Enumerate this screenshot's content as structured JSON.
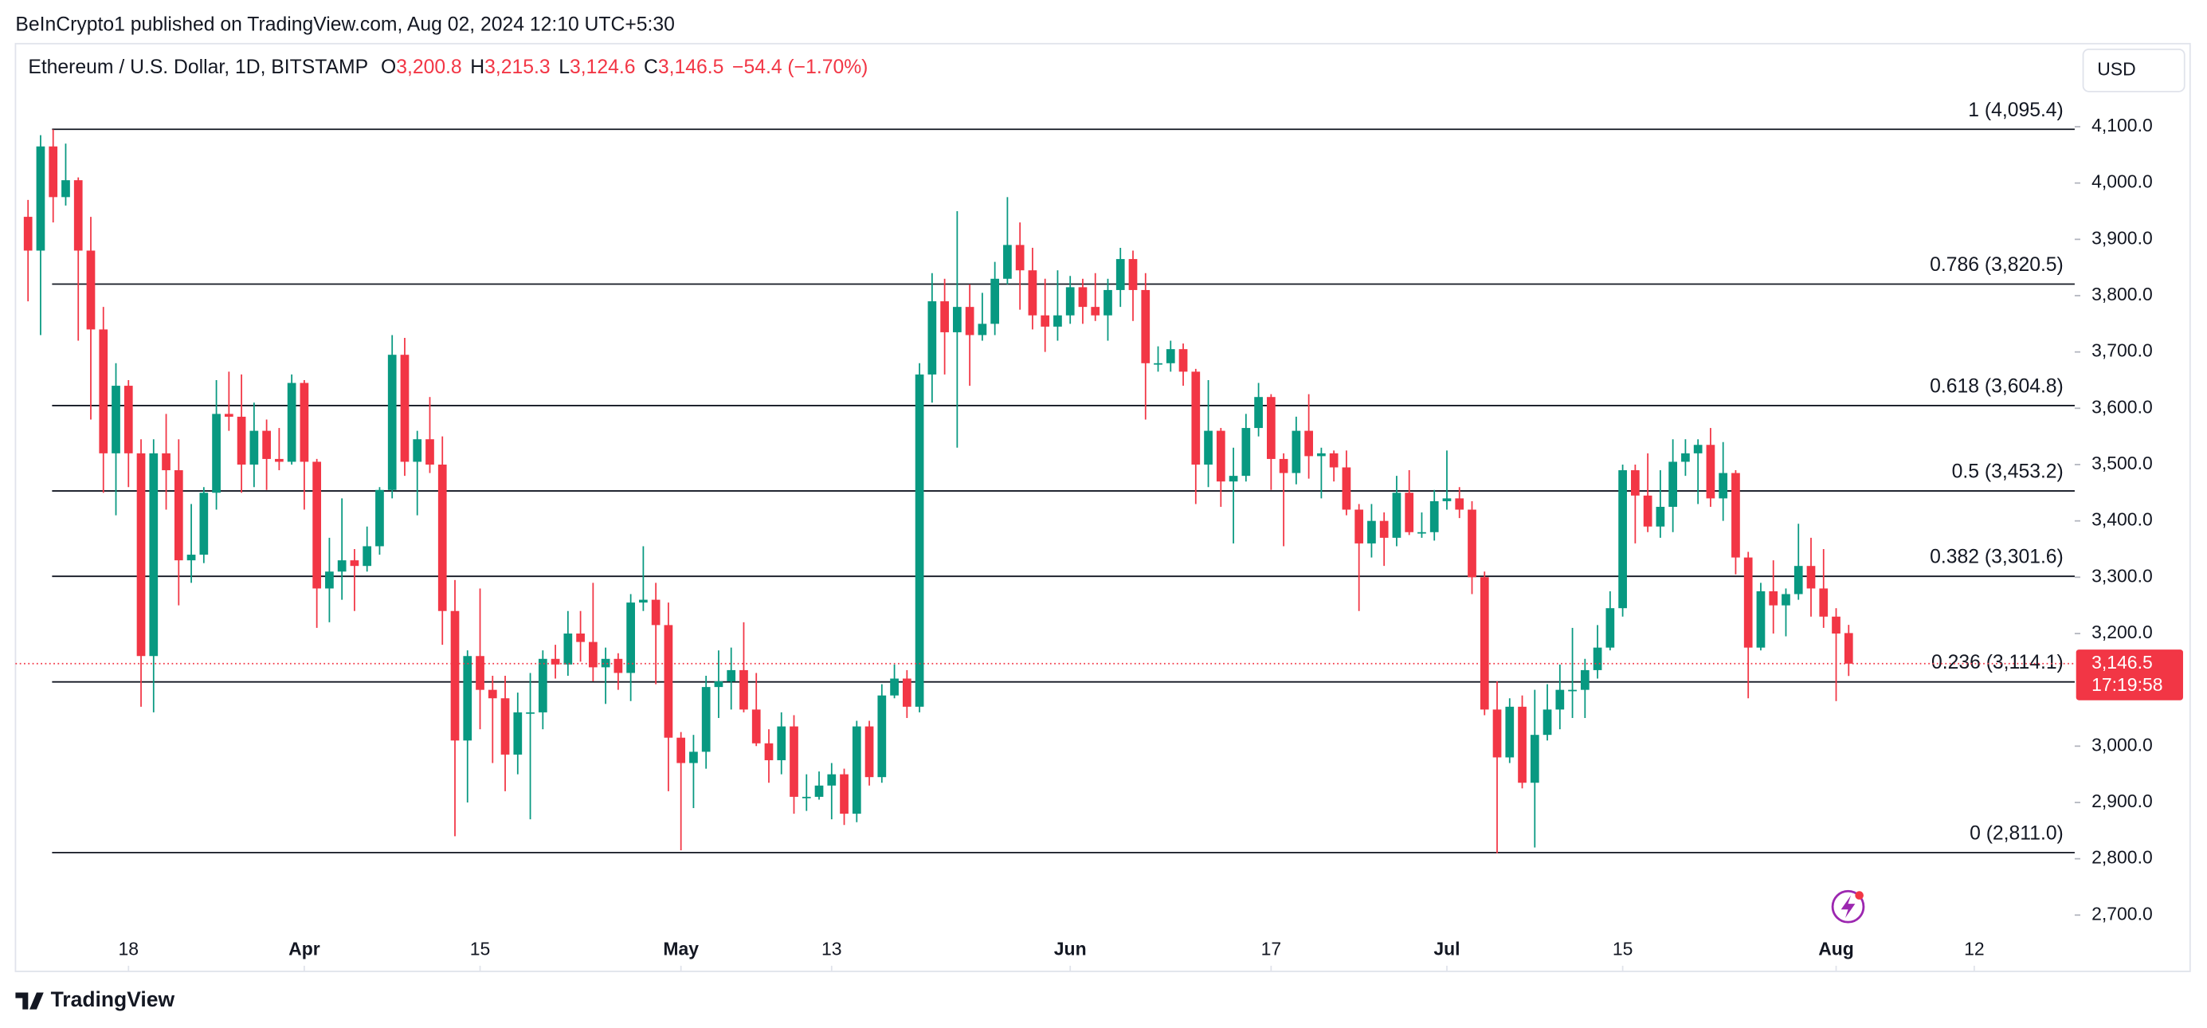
{
  "header": {
    "published": "BeInCrypto1 published on TradingView.com, Aug 02, 2024 12:10 UTC+5:30",
    "currency": "USD",
    "brand": "TradingView"
  },
  "chart_data": {
    "type": "candlestick",
    "legend": {
      "symbol": "Ethereum / U.S. Dollar, 1D, BITSTAMP",
      "ohlc": [
        {
          "key": "O",
          "value": "3,200.8"
        },
        {
          "key": "H",
          "value": "3,215.3"
        },
        {
          "key": "L",
          "value": "3,124.6"
        },
        {
          "key": "C",
          "value": "3,146.5"
        }
      ],
      "change": "−54.4 (−1.70%)"
    },
    "up_color": "#089981",
    "down_color": "#f23645",
    "open": [
      3940,
      3880,
      4065,
      3975,
      4005,
      3880,
      3740,
      3520,
      3640,
      3520,
      3160,
      3520,
      3490,
      3330,
      3340,
      3450,
      3590,
      3585,
      3500,
      3560,
      3510,
      3505,
      3645,
      3505,
      3280,
      3310,
      3330,
      3320,
      3355,
      3455,
      3695,
      3505,
      3545,
      3500,
      3240,
      3010,
      3160,
      3100,
      3085,
      2985,
      3060,
      3060,
      3155,
      3145,
      3200,
      3185,
      3140,
      3155,
      3130,
      3255,
      3260,
      3215,
      3015,
      2970,
      2990,
      3105,
      3115,
      3135,
      3065,
      3005,
      2975,
      3035,
      2910,
      2910,
      2930,
      2950,
      2880,
      3035,
      2945,
      3090,
      3120,
      3070,
      3660,
      3790,
      3735,
      3780,
      3730,
      3750,
      3830,
      3890,
      3845,
      3765,
      3745,
      3765,
      3815,
      3780,
      3765,
      3810,
      3865,
      3810,
      3680,
      3680,
      3705,
      3665,
      3500,
      3560,
      3470,
      3480,
      3565,
      3620,
      3510,
      3485,
      3560,
      3515,
      3520,
      3495,
      3420,
      3360,
      3400,
      3370,
      3450,
      3380,
      3380,
      3435,
      3440,
      3420,
      3300,
      3065,
      2980,
      3070,
      2935,
      3020,
      3065,
      3100,
      3100,
      3135,
      3175,
      3245,
      3490,
      3445,
      3390,
      3425,
      3505,
      3520,
      3535,
      3440,
      3485,
      3335,
      3175,
      3275,
      3250,
      3270,
      3320,
      3280,
      3230,
      3200.8
    ],
    "high": [
      3970,
      4085,
      4095,
      4070,
      4010,
      3940,
      3780,
      3680,
      3650,
      3545,
      3545,
      3590,
      3545,
      3430,
      3460,
      3650,
      3665,
      3660,
      3610,
      3580,
      3565,
      3660,
      3650,
      3510,
      3370,
      3440,
      3350,
      3390,
      3460,
      3730,
      3725,
      3560,
      3620,
      3550,
      3295,
      3170,
      3280,
      3125,
      3125,
      3095,
      3130,
      3170,
      3180,
      3240,
      3240,
      3290,
      3175,
      3165,
      3270,
      3355,
      3290,
      3255,
      3025,
      3020,
      3125,
      3170,
      3175,
      3220,
      3130,
      3030,
      3060,
      3055,
      2950,
      2955,
      2970,
      2960,
      3045,
      3045,
      3110,
      3145,
      3135,
      3680,
      3840,
      3830,
      3950,
      3820,
      3805,
      3860,
      3975,
      3930,
      3885,
      3830,
      3845,
      3835,
      3830,
      3840,
      3830,
      3885,
      3880,
      3840,
      3710,
      3720,
      3715,
      3670,
      3650,
      3565,
      3530,
      3590,
      3645,
      3625,
      3520,
      3585,
      3625,
      3530,
      3525,
      3525,
      3430,
      3430,
      3415,
      3480,
      3490,
      3415,
      3455,
      3525,
      3460,
      3435,
      3310,
      3115,
      3085,
      3090,
      3100,
      3110,
      3145,
      3210,
      3155,
      3215,
      3275,
      3500,
      3500,
      3520,
      3490,
      3545,
      3545,
      3545,
      3565,
      3540,
      3490,
      3345,
      3290,
      3330,
      3280,
      3395,
      3370,
      3350,
      3245,
      3215.3
    ],
    "low": [
      3790,
      3730,
      3930,
      3960,
      3720,
      3580,
      3450,
      3410,
      3460,
      3070,
      3060,
      3420,
      3250,
      3290,
      3325,
      3420,
      3560,
      3450,
      3460,
      3455,
      3490,
      3500,
      3420,
      3210,
      3220,
      3260,
      3240,
      3310,
      3340,
      3440,
      3480,
      3410,
      3485,
      3180,
      2840,
      2900,
      3030,
      2970,
      2920,
      2950,
      2870,
      3030,
      3120,
      3125,
      3150,
      3115,
      3075,
      3100,
      3080,
      3240,
      3110,
      2920,
      2815,
      2890,
      2960,
      3050,
      3065,
      3060,
      3000,
      2935,
      2950,
      2880,
      2885,
      2905,
      2870,
      2860,
      2865,
      2930,
      2935,
      3085,
      3050,
      3060,
      3610,
      3660,
      3530,
      3640,
      3720,
      3730,
      3820,
      3775,
      3740,
      3700,
      3720,
      3750,
      3750,
      3755,
      3720,
      3780,
      3755,
      3580,
      3665,
      3665,
      3640,
      3430,
      3460,
      3425,
      3360,
      3470,
      3550,
      3455,
      3355,
      3465,
      3475,
      3440,
      3470,
      3410,
      3240,
      3335,
      3320,
      3355,
      3375,
      3370,
      3365,
      3420,
      3405,
      3270,
      3055,
      2810,
      2970,
      2925,
      2820,
      3010,
      3030,
      3050,
      3050,
      3120,
      3170,
      3230,
      3360,
      3380,
      3370,
      3380,
      3480,
      3430,
      3425,
      3400,
      3305,
      3085,
      3170,
      3200,
      3195,
      3260,
      3230,
      3210,
      3080,
      3124.6
    ],
    "close": [
      3880,
      4065,
      3975,
      4005,
      3880,
      3740,
      3520,
      3640,
      3520,
      3160,
      3520,
      3490,
      3330,
      3340,
      3450,
      3590,
      3585,
      3500,
      3560,
      3510,
      3505,
      3645,
      3505,
      3280,
      3310,
      3330,
      3320,
      3355,
      3455,
      3695,
      3505,
      3545,
      3500,
      3240,
      3010,
      3160,
      3100,
      3085,
      2985,
      3060,
      3060,
      3155,
      3145,
      3200,
      3185,
      3140,
      3155,
      3130,
      3255,
      3260,
      3215,
      3015,
      2970,
      2990,
      3105,
      3115,
      3135,
      3065,
      3005,
      2975,
      3035,
      2910,
      2910,
      2930,
      2950,
      2880,
      3035,
      2945,
      3090,
      3120,
      3070,
      3660,
      3790,
      3735,
      3780,
      3730,
      3750,
      3830,
      3890,
      3845,
      3765,
      3745,
      3765,
      3815,
      3780,
      3765,
      3810,
      3865,
      3810,
      3680,
      3680,
      3705,
      3665,
      3500,
      3560,
      3470,
      3480,
      3565,
      3620,
      3510,
      3485,
      3560,
      3515,
      3520,
      3495,
      3420,
      3360,
      3400,
      3370,
      3450,
      3380,
      3380,
      3435,
      3440,
      3420,
      3300,
      3065,
      2980,
      3070,
      2935,
      3020,
      3065,
      3100,
      3100,
      3135,
      3175,
      3245,
      3490,
      3445,
      3390,
      3425,
      3505,
      3520,
      3535,
      3440,
      3485,
      3335,
      3175,
      3275,
      3250,
      3270,
      3320,
      3280,
      3230,
      3200,
      3146.5
    ],
    "xlim": [
      -1,
      163
    ],
    "xticks": [
      {
        "value": 8,
        "label": "18"
      },
      {
        "value": 22,
        "label": "Apr"
      },
      {
        "value": 36,
        "label": "15"
      },
      {
        "value": 52,
        "label": "May"
      },
      {
        "value": 64,
        "label": "13"
      },
      {
        "value": 83,
        "label": "Jun"
      },
      {
        "value": 99,
        "label": "17"
      },
      {
        "value": 113,
        "label": "Jul"
      },
      {
        "value": 127,
        "label": "15"
      },
      {
        "value": 144,
        "label": "Aug"
      },
      {
        "value": 155,
        "label": "12"
      }
    ],
    "ylim": [
      2600,
      4247.5
    ],
    "yticks": [
      {
        "value": 4100,
        "label": "4,100.0"
      },
      {
        "value": 4000,
        "label": "4,000.0"
      },
      {
        "value": 3900,
        "label": "3,900.0"
      },
      {
        "value": 3800,
        "label": "3,800.0"
      },
      {
        "value": 3700,
        "label": "3,700.0"
      },
      {
        "value": 3600,
        "label": "3,600.0"
      },
      {
        "value": 3500,
        "label": "3,500.0"
      },
      {
        "value": 3400,
        "label": "3,400.0"
      },
      {
        "value": 3300,
        "label": "3,300.0"
      },
      {
        "value": 3200,
        "label": "3,200.0"
      },
      {
        "value": 3000,
        "label": "3,000.0"
      },
      {
        "value": 2900,
        "label": "2,900.0"
      },
      {
        "value": 2800,
        "label": "2,800.0"
      },
      {
        "value": 2700,
        "label": "2,700.0"
      }
    ],
    "fib_levels": [
      {
        "value": 4095.4,
        "label": "1 (4,095.4)"
      },
      {
        "value": 3820.5,
        "label": "0.786 (3,820.5)"
      },
      {
        "value": 3604.8,
        "label": "0.618 (3,604.8)"
      },
      {
        "value": 3453.2,
        "label": "0.5 (3,453.2)"
      },
      {
        "value": 3301.6,
        "label": "0.382 (3,301.6)"
      },
      {
        "value": 3114.1,
        "label": "0.236 (3,114.1)"
      },
      {
        "value": 2811.0,
        "label": "0 (2,811.0)"
      }
    ],
    "last_price": {
      "value": 3146.5,
      "label": "3,146.5"
    },
    "countdown": "17:19:58"
  }
}
